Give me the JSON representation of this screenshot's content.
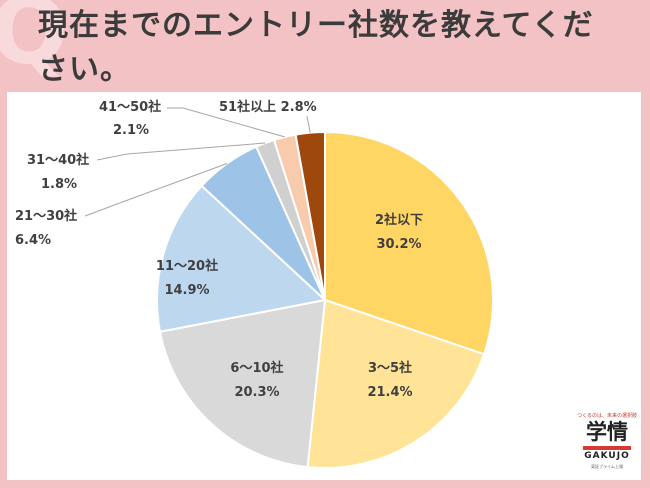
{
  "page": {
    "title": "現在までのエントリー社数を教えてください。",
    "q_mark": "Q"
  },
  "logo": {
    "tagline": "つくるのは、未来の選択肢",
    "main": "学情",
    "english": "GAKUJO",
    "sub": "東証プライム上場"
  },
  "chart_data": {
    "type": "pie",
    "title": "",
    "start_angle_deg": 0,
    "direction": "clockwise",
    "slices": [
      {
        "label": "2社以下",
        "value": 30.2,
        "value_text": "30.2%",
        "color": "#ffd563"
      },
      {
        "label": "3〜5社",
        "value": 21.4,
        "value_text": "21.4%",
        "color": "#ffe396"
      },
      {
        "label": "6〜10社",
        "value": 20.3,
        "value_text": "20.3%",
        "color": "#d9d9d9"
      },
      {
        "label": "11〜20社",
        "value": 14.9,
        "value_text": "14.9%",
        "color": "#bdd7ee"
      },
      {
        "label": "21〜30社",
        "value": 6.4,
        "value_text": "6.4%",
        "color": "#9dc3e6"
      },
      {
        "label": "31〜40社",
        "value": 1.8,
        "value_text": "1.8%",
        "color": "#d0d0d0"
      },
      {
        "label": "41〜50社",
        "value": 2.1,
        "value_text": "2.1%",
        "color": "#f8cbad"
      },
      {
        "label": "51社以上",
        "value": 2.8,
        "value_text": "2.8%",
        "color": "#9e480e"
      }
    ]
  }
}
